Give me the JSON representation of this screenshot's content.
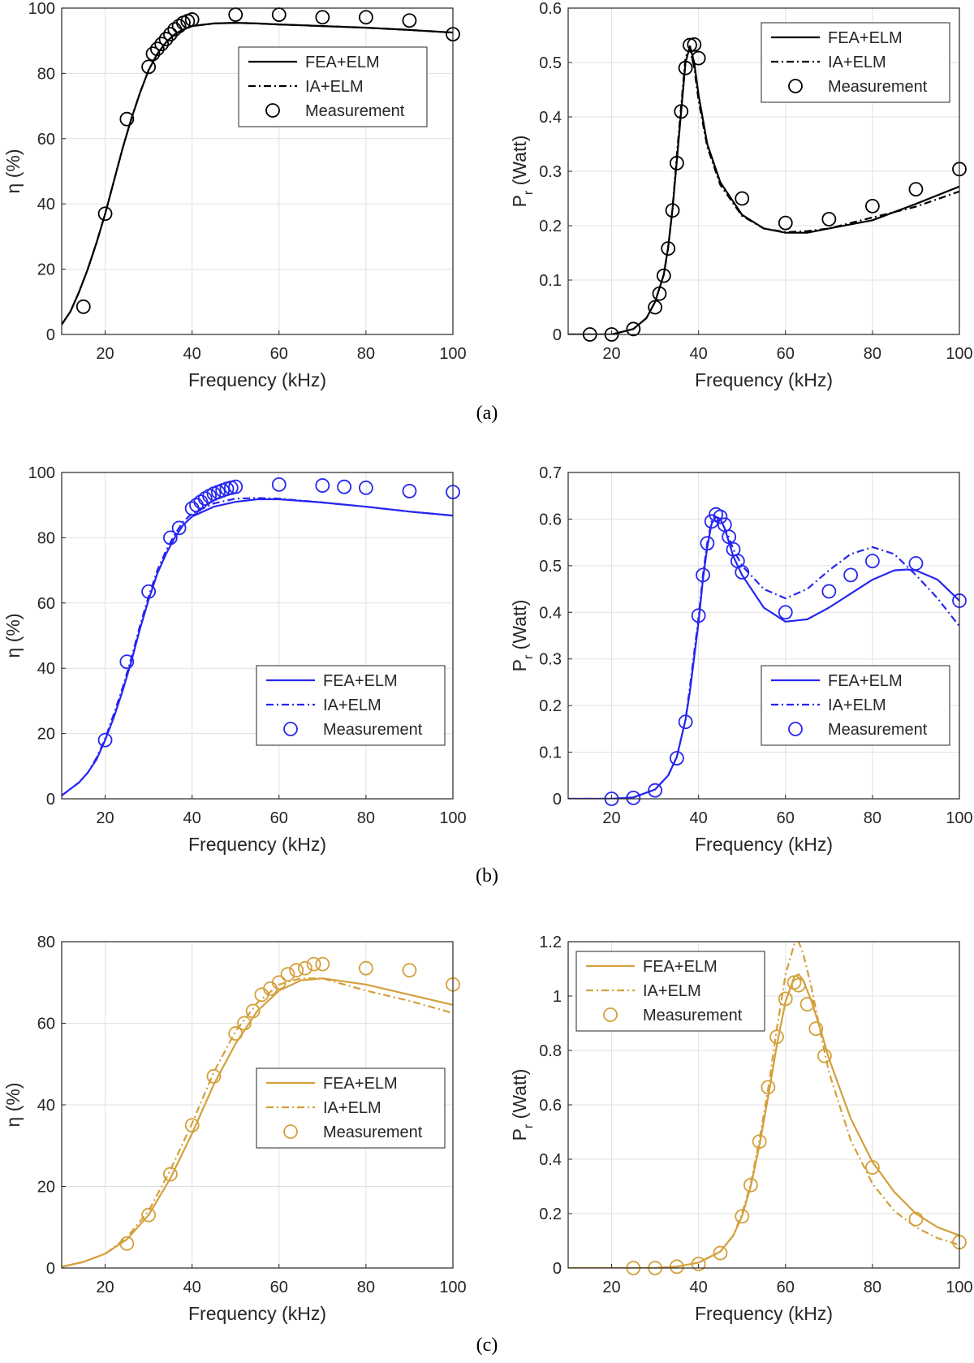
{
  "figure": {
    "panel_labels": [
      "(a)",
      "(b)",
      "(c)"
    ]
  },
  "chart_data": [
    {
      "id": "a-eff",
      "type": "line",
      "color": "#000000",
      "xlabel": "Frequency (kHz)",
      "ylabel": "η (%)",
      "xlim": [
        10,
        100
      ],
      "ylim": [
        0,
        100
      ],
      "xticks": [
        20,
        40,
        60,
        80,
        100
      ],
      "yticks": [
        0,
        20,
        40,
        60,
        80,
        100
      ],
      "legend_position": "top-right",
      "series": [
        {
          "name": "FEA+ELM",
          "style": "solid",
          "x": [
            10,
            12,
            14,
            16,
            18,
            20,
            22,
            24,
            26,
            28,
            30,
            32,
            34,
            36,
            38,
            40,
            45,
            50,
            55,
            60,
            70,
            80,
            90,
            100
          ],
          "y": [
            3,
            7,
            13,
            20,
            28,
            37,
            47,
            57,
            66,
            74,
            81,
            86,
            89.5,
            92,
            93.5,
            94.5,
            95.3,
            95.5,
            95.3,
            95,
            94.5,
            94,
            93.3,
            92.5
          ]
        },
        {
          "name": "IA+ELM",
          "style": "dashdot",
          "x": [
            10,
            12,
            14,
            16,
            18,
            20,
            22,
            24,
            26,
            28,
            30,
            32,
            34,
            36,
            38,
            40,
            45,
            50,
            55,
            60,
            70,
            80,
            90,
            100
          ],
          "y": [
            3,
            7,
            13,
            20,
            28,
            37,
            47,
            57,
            66,
            74,
            81,
            86,
            89.5,
            92,
            93.5,
            94.5,
            95.3,
            95.5,
            95.3,
            95,
            94.5,
            94,
            93.3,
            92.5
          ]
        },
        {
          "name": "Measurement",
          "style": "marker",
          "x": [
            15,
            20,
            25,
            30,
            31,
            32,
            33,
            34,
            35,
            36,
            37,
            38,
            39,
            40,
            50,
            60,
            70,
            80,
            90,
            100
          ],
          "y": [
            8.5,
            37,
            66,
            82,
            86,
            87.5,
            89,
            90.5,
            92,
            93.5,
            94.5,
            95.5,
            96,
            96.5,
            98,
            98,
            97.2,
            97.2,
            96.2,
            92
          ]
        }
      ]
    },
    {
      "id": "a-pow",
      "type": "line",
      "color": "#000000",
      "xlabel": "Frequency (kHz)",
      "ylabel": "P",
      "ylabel_sub": "r",
      "ylabel_suffix": " (Watt)",
      "xlim": [
        10,
        100
      ],
      "ylim": [
        0,
        0.6
      ],
      "xticks": [
        20,
        40,
        60,
        80,
        100
      ],
      "yticks": [
        0,
        0.1,
        0.2,
        0.3,
        0.4,
        0.5,
        0.6
      ],
      "legend_position": "top-right",
      "series": [
        {
          "name": "FEA+ELM",
          "style": "solid",
          "x": [
            10,
            20,
            25,
            28,
            30,
            32,
            33,
            34,
            35,
            36,
            37,
            38,
            39,
            40,
            42,
            45,
            50,
            55,
            60,
            65,
            70,
            80,
            90,
            100
          ],
          "y": [
            0,
            0,
            0.01,
            0.03,
            0.06,
            0.11,
            0.16,
            0.23,
            0.32,
            0.41,
            0.5,
            0.53,
            0.5,
            0.44,
            0.35,
            0.28,
            0.22,
            0.195,
            0.187,
            0.187,
            0.195,
            0.21,
            0.24,
            0.272
          ]
        },
        {
          "name": "IA+ELM",
          "style": "dashdot",
          "x": [
            10,
            20,
            25,
            28,
            30,
            32,
            33,
            34,
            35,
            36,
            37,
            38,
            39,
            40,
            42,
            45,
            50,
            55,
            60,
            65,
            70,
            80,
            90,
            100
          ],
          "y": [
            0,
            0,
            0.01,
            0.03,
            0.06,
            0.11,
            0.16,
            0.23,
            0.33,
            0.42,
            0.51,
            0.525,
            0.49,
            0.43,
            0.345,
            0.275,
            0.218,
            0.195,
            0.188,
            0.19,
            0.195,
            0.215,
            0.235,
            0.263
          ]
        },
        {
          "name": "Measurement",
          "style": "marker",
          "x": [
            15,
            20,
            25,
            30,
            31,
            32,
            33,
            34,
            35,
            36,
            37,
            38,
            39,
            40,
            50,
            60,
            70,
            80,
            90,
            100
          ],
          "y": [
            0,
            0,
            0.01,
            0.05,
            0.075,
            0.108,
            0.158,
            0.228,
            0.315,
            0.41,
            0.49,
            0.532,
            0.533,
            0.508,
            0.25,
            0.205,
            0.212,
            0.236,
            0.267,
            0.304
          ]
        }
      ]
    },
    {
      "id": "b-eff",
      "type": "line",
      "color": "#2626f2",
      "xlabel": "Frequency (kHz)",
      "ylabel": "η (%)",
      "xlim": [
        10,
        100
      ],
      "ylim": [
        0,
        100
      ],
      "xticks": [
        20,
        40,
        60,
        80,
        100
      ],
      "yticks": [
        0,
        20,
        40,
        60,
        80,
        100
      ],
      "legend_position": "lower-right",
      "series": [
        {
          "name": "FEA+ELM",
          "style": "solid",
          "x": [
            10,
            12,
            14,
            16,
            18,
            20,
            22,
            24,
            26,
            28,
            30,
            32,
            34,
            36,
            38,
            40,
            45,
            50,
            55,
            60,
            70,
            80,
            90,
            100
          ],
          "y": [
            1,
            3,
            5,
            8,
            12,
            18,
            25,
            33,
            42,
            52,
            61,
            69,
            75,
            80,
            84,
            86.5,
            89.5,
            91,
            91.8,
            91.8,
            90.8,
            89.5,
            88,
            86.8
          ]
        },
        {
          "name": "IA+ELM",
          "style": "dashdot",
          "x": [
            10,
            12,
            14,
            16,
            18,
            20,
            22,
            24,
            26,
            28,
            30,
            32,
            34,
            36,
            38,
            40,
            45,
            50,
            55,
            60,
            70,
            80,
            90,
            100
          ],
          "y": [
            1,
            3,
            5,
            8,
            12.5,
            18.5,
            26,
            34,
            43,
            53,
            62,
            70,
            76,
            81,
            85,
            87.5,
            90.5,
            92,
            92.2,
            92,
            90.8,
            89.5,
            88,
            86.8
          ]
        },
        {
          "name": "Measurement",
          "style": "marker",
          "x": [
            20,
            25,
            30,
            35,
            37,
            40,
            41,
            42,
            43,
            44,
            45,
            46,
            47,
            48,
            49,
            50,
            60,
            70,
            75,
            80,
            90,
            100
          ],
          "y": [
            18,
            42,
            63.5,
            80,
            83,
            89,
            90,
            91,
            92,
            92.8,
            93.5,
            94,
            94.5,
            95,
            95.3,
            95.6,
            96.3,
            96,
            95.6,
            95.3,
            94.3,
            94
          ]
        }
      ]
    },
    {
      "id": "b-pow",
      "type": "line",
      "color": "#2626f2",
      "xlabel": "Frequency (kHz)",
      "ylabel": "P",
      "ylabel_sub": "r",
      "ylabel_suffix": " (Watt)",
      "xlim": [
        10,
        100
      ],
      "ylim": [
        0,
        0.7
      ],
      "xticks": [
        20,
        40,
        60,
        80,
        100
      ],
      "yticks": [
        0,
        0.1,
        0.2,
        0.3,
        0.4,
        0.5,
        0.6,
        0.7
      ],
      "legend_position": "lower-right",
      "series": [
        {
          "name": "FEA+ELM",
          "style": "solid",
          "x": [
            10,
            20,
            25,
            30,
            33,
            35,
            37,
            38,
            40,
            41,
            42,
            43,
            44,
            45,
            46,
            47,
            48,
            50,
            55,
            60,
            65,
            70,
            75,
            80,
            85,
            88,
            90,
            95,
            100
          ],
          "y": [
            0,
            0,
            0.003,
            0.02,
            0.05,
            0.09,
            0.17,
            0.23,
            0.38,
            0.47,
            0.54,
            0.59,
            0.605,
            0.6,
            0.58,
            0.55,
            0.52,
            0.48,
            0.41,
            0.38,
            0.385,
            0.41,
            0.44,
            0.47,
            0.49,
            0.492,
            0.49,
            0.47,
            0.425
          ]
        },
        {
          "name": "IA+ELM",
          "style": "dashdot",
          "x": [
            10,
            20,
            25,
            30,
            33,
            35,
            37,
            38,
            40,
            41,
            42,
            43,
            44,
            45,
            46,
            47,
            48,
            50,
            55,
            60,
            65,
            70,
            75,
            80,
            85,
            90,
            95,
            100
          ],
          "y": [
            0,
            0,
            0.003,
            0.02,
            0.05,
            0.09,
            0.17,
            0.24,
            0.39,
            0.48,
            0.55,
            0.595,
            0.605,
            0.6,
            0.58,
            0.56,
            0.535,
            0.5,
            0.45,
            0.43,
            0.45,
            0.49,
            0.525,
            0.54,
            0.525,
            0.48,
            0.43,
            0.37
          ]
        },
        {
          "name": "Measurement",
          "style": "marker",
          "x": [
            20,
            25,
            30,
            35,
            37,
            40,
            41,
            42,
            43,
            44,
            45,
            46,
            47,
            48,
            49,
            50,
            60,
            70,
            75,
            80,
            90,
            100
          ],
          "y": [
            0,
            0.002,
            0.018,
            0.087,
            0.165,
            0.393,
            0.48,
            0.548,
            0.595,
            0.61,
            0.605,
            0.588,
            0.562,
            0.535,
            0.51,
            0.486,
            0.4,
            0.445,
            0.48,
            0.51,
            0.505,
            0.425
          ]
        }
      ]
    },
    {
      "id": "c-eff",
      "type": "line",
      "color": "#d4a03c",
      "xlabel": "Frequency (kHz)",
      "ylabel": "η (%)",
      "xlim": [
        10,
        100
      ],
      "ylim": [
        0,
        80
      ],
      "xticks": [
        20,
        40,
        60,
        80,
        100
      ],
      "yticks": [
        0,
        20,
        40,
        60,
        80
      ],
      "legend_position": "lower-right",
      "series": [
        {
          "name": "FEA+ELM",
          "style": "solid",
          "x": [
            10,
            15,
            20,
            25,
            30,
            35,
            40,
            45,
            50,
            55,
            60,
            65,
            70,
            80,
            90,
            100
          ],
          "y": [
            0.3,
            1.5,
            3.5,
            7,
            13,
            22,
            33,
            45,
            55,
            63,
            68,
            70.5,
            71,
            69.5,
            67,
            64.5
          ]
        },
        {
          "name": "IA+ELM",
          "style": "dashdot",
          "x": [
            10,
            15,
            20,
            25,
            30,
            35,
            40,
            45,
            50,
            55,
            60,
            65,
            70,
            80,
            90,
            100
          ],
          "y": [
            0.3,
            1.5,
            3.5,
            7.5,
            14,
            24,
            35.5,
            48,
            58,
            65,
            69.5,
            71,
            71,
            68,
            65.5,
            62.5
          ]
        },
        {
          "name": "Measurement",
          "style": "marker",
          "x": [
            25,
            30,
            35,
            40,
            45,
            50,
            52,
            54,
            56,
            58,
            60,
            62,
            64,
            66,
            68,
            70,
            80,
            90,
            100
          ],
          "y": [
            6,
            13,
            23,
            35,
            47,
            57.5,
            60,
            63,
            67,
            68.5,
            70,
            72,
            73,
            73.5,
            74.5,
            74.5,
            73.5,
            73,
            69.5
          ]
        }
      ]
    },
    {
      "id": "c-pow",
      "type": "line",
      "color": "#d4a03c",
      "xlabel": "Frequency (kHz)",
      "ylabel": "P",
      "ylabel_sub": "r",
      "ylabel_suffix": " (Watt)",
      "xlim": [
        10,
        100
      ],
      "ylim": [
        0,
        1.2
      ],
      "xticks": [
        20,
        40,
        60,
        80,
        100
      ],
      "yticks": [
        0,
        0.2,
        0.4,
        0.6,
        0.8,
        1,
        1.2
      ],
      "legend_position": "top-left",
      "series": [
        {
          "name": "FEA+ELM",
          "style": "solid",
          "x": [
            10,
            30,
            35,
            40,
            45,
            48,
            50,
            52,
            54,
            56,
            58,
            60,
            62,
            63,
            64,
            66,
            68,
            70,
            75,
            80,
            85,
            90,
            95,
            100
          ],
          "y": [
            0,
            0,
            0.005,
            0.02,
            0.06,
            0.12,
            0.19,
            0.3,
            0.45,
            0.63,
            0.82,
            0.98,
            1.07,
            1.08,
            1.06,
            0.98,
            0.88,
            0.77,
            0.55,
            0.39,
            0.28,
            0.2,
            0.15,
            0.12
          ]
        },
        {
          "name": "IA+ELM",
          "style": "dashdot",
          "x": [
            10,
            30,
            35,
            40,
            45,
            48,
            50,
            52,
            54,
            56,
            58,
            60,
            62,
            63,
            64,
            66,
            68,
            70,
            75,
            80,
            85,
            90,
            95,
            100
          ],
          "y": [
            0,
            0,
            0.005,
            0.02,
            0.06,
            0.12,
            0.2,
            0.31,
            0.47,
            0.66,
            0.88,
            1.08,
            1.19,
            1.2,
            1.16,
            1.03,
            0.87,
            0.72,
            0.47,
            0.31,
            0.21,
            0.15,
            0.11,
            0.085
          ]
        },
        {
          "name": "Measurement",
          "style": "marker",
          "x": [
            25,
            30,
            35,
            40,
            45,
            50,
            52,
            54,
            56,
            58,
            60,
            62,
            63,
            65,
            67,
            69,
            80,
            90,
            100
          ],
          "y": [
            0,
            0,
            0.005,
            0.015,
            0.055,
            0.19,
            0.305,
            0.465,
            0.665,
            0.85,
            0.99,
            1.05,
            1.04,
            0.97,
            0.88,
            0.78,
            0.37,
            0.18,
            0.095
          ]
        }
      ]
    }
  ]
}
